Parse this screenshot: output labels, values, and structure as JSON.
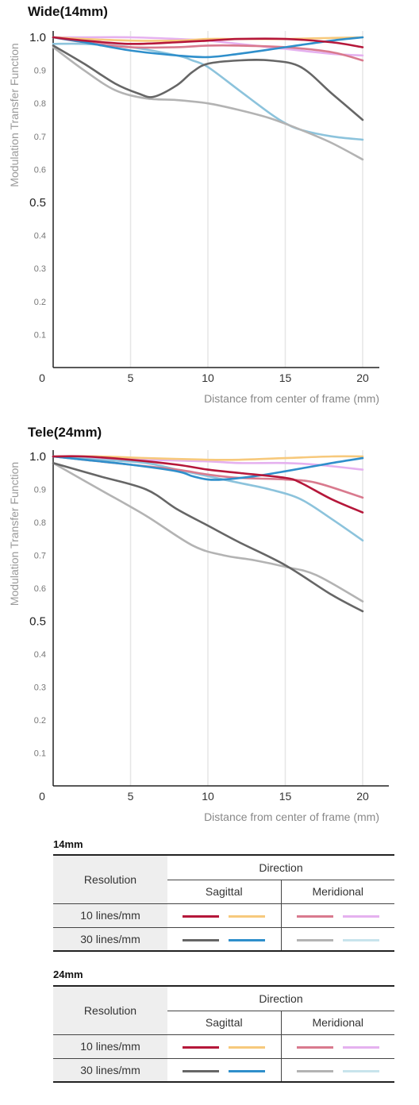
{
  "charts": [
    {
      "title": "Wide(14mm)",
      "ylabel": "Modulation Transfer Function",
      "xlabel": "Distance from center of frame (mm)",
      "xticks": [
        "0",
        "5",
        "10",
        "15",
        "20"
      ],
      "yticks": [
        "1.0",
        "0.9",
        "0.8",
        "0.7",
        "0.6",
        "0.5",
        "0.4",
        "0.3",
        "0.2",
        "0.1"
      ]
    },
    {
      "title": "Tele(24mm)",
      "ylabel": "Modulation Transfer Function",
      "xlabel": "Distance from center of frame (mm)",
      "xticks": [
        "0",
        "5",
        "10",
        "15",
        "20"
      ],
      "yticks": [
        "1.0",
        "0.9",
        "0.8",
        "0.7",
        "0.6",
        "0.5",
        "0.4",
        "0.3",
        "0.2",
        "0.1"
      ]
    }
  ],
  "chart_data": [
    {
      "type": "line",
      "title": "Wide(14mm)",
      "xlabel": "Distance from center of frame (mm)",
      "ylabel": "Modulation Transfer Function",
      "xlim": [
        0,
        21
      ],
      "ylim": [
        0,
        1.0
      ],
      "grid": true,
      "series": [
        {
          "id": "sag10",
          "color": "#b5173a",
          "x": [
            0,
            2,
            5,
            8,
            10,
            12,
            15,
            18,
            20
          ],
          "y": [
            1.0,
            0.99,
            0.98,
            0.985,
            0.99,
            0.995,
            0.995,
            0.985,
            0.97
          ]
        },
        {
          "id": "sag10b",
          "color": "#f7c97c",
          "x": [
            0,
            2,
            5,
            8,
            10,
            12,
            15,
            18,
            20
          ],
          "y": [
            1.0,
            0.995,
            0.99,
            0.99,
            0.995,
            0.995,
            0.995,
            0.998,
            1.0
          ]
        },
        {
          "id": "mer10",
          "color": "#d97a8e",
          "x": [
            0,
            2,
            5,
            8,
            10,
            12,
            15,
            18,
            20
          ],
          "y": [
            1.0,
            0.985,
            0.97,
            0.97,
            0.975,
            0.975,
            0.97,
            0.955,
            0.93
          ]
        },
        {
          "id": "mer10b",
          "color": "#e5b1ef",
          "x": [
            0,
            2,
            5,
            8,
            10,
            12,
            15,
            18,
            20
          ],
          "y": [
            1.0,
            1.0,
            1.0,
            0.995,
            0.99,
            0.98,
            0.965,
            0.95,
            0.945
          ]
        },
        {
          "id": "sag30",
          "color": "#666666",
          "x": [
            0,
            2,
            4,
            5.5,
            6.5,
            8,
            9,
            10,
            12,
            14,
            16,
            18,
            20
          ],
          "y": [
            0.975,
            0.92,
            0.86,
            0.83,
            0.82,
            0.855,
            0.895,
            0.92,
            0.93,
            0.93,
            0.91,
            0.83,
            0.75
          ]
        },
        {
          "id": "sag30b",
          "color": "#2f8fcb",
          "x": [
            0,
            2,
            5,
            8,
            10,
            12,
            15,
            18,
            20
          ],
          "y": [
            1.0,
            0.985,
            0.96,
            0.945,
            0.94,
            0.95,
            0.97,
            0.99,
            1.0
          ]
        },
        {
          "id": "mer30",
          "color": "#b3b3b3",
          "x": [
            0,
            2,
            4,
            6,
            8,
            10,
            12,
            14,
            16,
            18,
            20
          ],
          "y": [
            0.97,
            0.9,
            0.84,
            0.815,
            0.81,
            0.8,
            0.78,
            0.755,
            0.72,
            0.68,
            0.63
          ]
        },
        {
          "id": "mer30b",
          "color": "#8cc3dc",
          "x": [
            0,
            2,
            5,
            8,
            9,
            10,
            12,
            14,
            15,
            16,
            18,
            20
          ],
          "y": [
            0.98,
            0.98,
            0.97,
            0.945,
            0.93,
            0.91,
            0.84,
            0.77,
            0.74,
            0.72,
            0.7,
            0.69
          ]
        }
      ]
    },
    {
      "type": "line",
      "title": "Tele(24mm)",
      "xlabel": "Distance from center of frame (mm)",
      "ylabel": "Modulation Transfer Function",
      "xlim": [
        0,
        21
      ],
      "ylim": [
        0,
        1.0
      ],
      "grid": true,
      "series": [
        {
          "id": "sag10",
          "color": "#b5173a",
          "x": [
            0,
            2,
            5,
            8,
            10,
            12,
            15,
            16,
            18,
            20
          ],
          "y": [
            1.0,
            1.0,
            0.99,
            0.975,
            0.96,
            0.95,
            0.935,
            0.92,
            0.87,
            0.83
          ]
        },
        {
          "id": "sag10b",
          "color": "#f7c97c",
          "x": [
            0,
            3,
            6,
            10,
            12,
            15,
            18,
            20
          ],
          "y": [
            1.0,
            1.0,
            0.995,
            0.99,
            0.99,
            0.995,
            1.0,
            1.0
          ]
        },
        {
          "id": "mer10",
          "color": "#d97a8e",
          "x": [
            0,
            2,
            5,
            8,
            10,
            12,
            15,
            17,
            20
          ],
          "y": [
            1.0,
            0.99,
            0.975,
            0.96,
            0.945,
            0.935,
            0.93,
            0.92,
            0.875
          ]
        },
        {
          "id": "mer10b",
          "color": "#e5b1ef",
          "x": [
            0,
            3,
            6,
            10,
            12,
            15,
            17,
            20
          ],
          "y": [
            1.0,
            0.995,
            0.99,
            0.985,
            0.98,
            0.98,
            0.975,
            0.96
          ]
        },
        {
          "id": "sag30",
          "color": "#666666",
          "x": [
            0,
            3,
            6,
            8,
            10,
            12,
            15,
            18,
            20
          ],
          "y": [
            0.98,
            0.94,
            0.9,
            0.84,
            0.79,
            0.74,
            0.67,
            0.58,
            0.53
          ]
        },
        {
          "id": "sag30b",
          "color": "#2f8fcb",
          "x": [
            0,
            2,
            5,
            8,
            9,
            10,
            11,
            13,
            15,
            18,
            20
          ],
          "y": [
            1.0,
            0.99,
            0.975,
            0.955,
            0.94,
            0.93,
            0.93,
            0.94,
            0.955,
            0.98,
            0.995
          ]
        },
        {
          "id": "mer30",
          "color": "#b3b3b3",
          "x": [
            0,
            3,
            6,
            9,
            11,
            13,
            15,
            17,
            20
          ],
          "y": [
            0.98,
            0.9,
            0.82,
            0.73,
            0.7,
            0.685,
            0.665,
            0.64,
            0.56
          ]
        },
        {
          "id": "mer30b",
          "color": "#8cc3dc",
          "x": [
            0,
            3,
            6,
            8,
            10,
            12,
            14,
            16,
            18,
            20
          ],
          "y": [
            1.0,
            0.99,
            0.98,
            0.96,
            0.94,
            0.92,
            0.9,
            0.87,
            0.81,
            0.745
          ]
        }
      ]
    }
  ],
  "legends": [
    {
      "title": "14mm",
      "resolution_label": "Resolution",
      "direction_label": "Direction",
      "sagittal_label": "Sagittal",
      "meridional_label": "Meridional",
      "rows": [
        {
          "label": "10 lines/mm",
          "sagittal": [
            "#b5173a",
            "#f7c97c"
          ],
          "meridional": [
            "#d97a8e",
            "#e5b1ef"
          ]
        },
        {
          "label": "30 lines/mm",
          "sagittal": [
            "#666666",
            "#2f8fcb"
          ],
          "meridional": [
            "#b3b3b3",
            "#c8e4ec"
          ]
        }
      ]
    },
    {
      "title": "24mm",
      "resolution_label": "Resolution",
      "direction_label": "Direction",
      "sagittal_label": "Sagittal",
      "meridional_label": "Meridional",
      "rows": [
        {
          "label": "10 lines/mm",
          "sagittal": [
            "#b5173a",
            "#f7c97c"
          ],
          "meridional": [
            "#d97a8e",
            "#e5b1ef"
          ]
        },
        {
          "label": "30 lines/mm",
          "sagittal": [
            "#666666",
            "#2f8fcb"
          ],
          "meridional": [
            "#b3b3b3",
            "#c8e4ec"
          ]
        }
      ]
    }
  ]
}
